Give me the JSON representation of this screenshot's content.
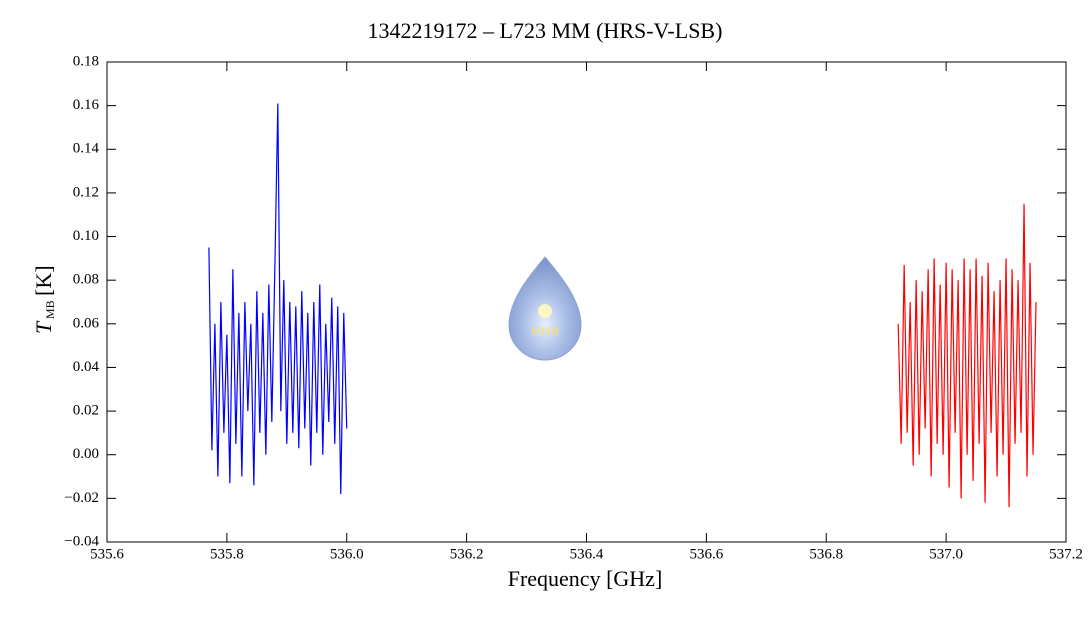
{
  "chart_data": {
    "type": "line",
    "title": "1342219172 – L723 MM (HRS-V-LSB)",
    "xlabel": "Frequency [GHz]",
    "ylabel": {
      "symbol": "T",
      "subscript": "MB",
      "unit": "[K]"
    },
    "logo_text": "WISH",
    "xlim": [
      535.6,
      537.2
    ],
    "xticks": [
      535.6,
      535.8,
      {
        "value": 536,
        "label": "536.0"
      },
      536.2,
      536.4,
      536.6,
      536.8,
      {
        "value": 537,
        "label": "537.0"
      },
      537.2
    ],
    "ylim": [
      -0.04,
      0.18
    ],
    "yticks": [
      {
        "value": -0.04,
        "label": "−0.04"
      },
      {
        "value": -0.02,
        "label": "−0.02"
      },
      {
        "value": 0,
        "label": "0.00"
      },
      0.02,
      0.04,
      0.06,
      0.08,
      {
        "value": 0.1,
        "label": "0.10"
      },
      0.12,
      0.14,
      0.16,
      0.18
    ],
    "series": [
      {
        "color": "#0000ff",
        "x": [
          535.77,
          535.775,
          535.78,
          535.785,
          535.79,
          535.795,
          535.8,
          535.805,
          535.81,
          535.815,
          535.82,
          535.825,
          535.83,
          535.835,
          535.84,
          535.845,
          535.85,
          535.855,
          535.86,
          535.865,
          535.87,
          535.875,
          535.88,
          535.885,
          535.89,
          535.895,
          535.9,
          535.905,
          535.91,
          535.915,
          535.92,
          535.925,
          535.93,
          535.935,
          535.94,
          535.945,
          535.95,
          535.955,
          535.96,
          535.965,
          535.97,
          535.975,
          535.98,
          535.985,
          535.99,
          535.995,
          536.0
        ],
        "values": [
          0.095,
          0.002,
          0.06,
          -0.01,
          0.07,
          0.01,
          0.055,
          -0.013,
          0.085,
          0.005,
          0.065,
          -0.01,
          0.07,
          0.02,
          0.06,
          -0.014,
          0.075,
          0.01,
          0.065,
          0.0,
          0.078,
          0.015,
          0.085,
          0.161,
          0.02,
          0.08,
          0.005,
          0.07,
          0.01,
          0.068,
          0.003,
          0.075,
          0.012,
          0.065,
          -0.005,
          0.07,
          0.01,
          0.078,
          0.0,
          0.06,
          0.015,
          0.072,
          0.005,
          0.068,
          -0.018,
          0.065,
          0.012
        ]
      },
      {
        "color": "#ff0000",
        "x": [
          536.92,
          536.925,
          536.93,
          536.935,
          536.94,
          536.945,
          536.95,
          536.955,
          536.96,
          536.965,
          536.97,
          536.975,
          536.98,
          536.985,
          536.99,
          536.995,
          537.0,
          537.005,
          537.01,
          537.015,
          537.02,
          537.025,
          537.03,
          537.035,
          537.04,
          537.045,
          537.05,
          537.055,
          537.06,
          537.065,
          537.07,
          537.075,
          537.08,
          537.085,
          537.09,
          537.095,
          537.1,
          537.105,
          537.11,
          537.115,
          537.12,
          537.125,
          537.13,
          537.135,
          537.14,
          537.145,
          537.15
        ],
        "values": [
          0.06,
          0.005,
          0.087,
          0.01,
          0.07,
          -0.005,
          0.08,
          0.0,
          0.075,
          0.012,
          0.085,
          -0.01,
          0.09,
          0.005,
          0.078,
          0.0,
          0.088,
          -0.015,
          0.085,
          0.01,
          0.08,
          -0.02,
          0.09,
          0.0,
          0.085,
          -0.012,
          0.09,
          0.005,
          0.082,
          -0.022,
          0.088,
          0.01,
          0.075,
          -0.01,
          0.08,
          0.0,
          0.09,
          -0.024,
          0.085,
          0.005,
          0.08,
          0.01,
          0.115,
          -0.01,
          0.088,
          0.0,
          0.07
        ]
      }
    ]
  }
}
